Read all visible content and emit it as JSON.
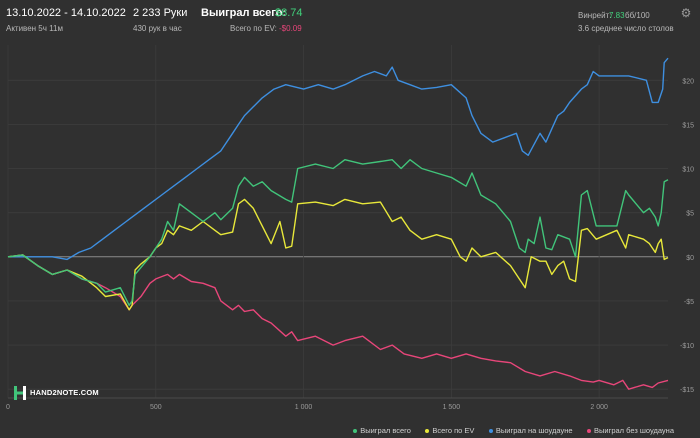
{
  "header": {
    "date_range": "13.10.2022 - 14.10.2022",
    "active": "Активен 5ч 11м",
    "hands": "2 233 Руки",
    "hands_per_hour": "430 рук в час",
    "won_label": "Выиграл всего:",
    "won_value": "$8.74",
    "ev_label": "Всего по EV:",
    "ev_value": "-$0.09",
    "winrate_label": "Винрейт:",
    "winrate_value": "7.83",
    "winrate_unit": "бб/100",
    "avg_tables": "3.6 среднее число столов"
  },
  "logo": {
    "text": "HAND2NOTE.COM"
  },
  "colors": {
    "background": "#303030",
    "grid": "#3c3c3c",
    "zero_line": "#8a8a8a",
    "won": "#41c47a",
    "ev": "#e8e83a",
    "showdown": "#3e8fe0",
    "non_showdown": "#e8467a"
  },
  "chart_data": {
    "type": "line",
    "title": "",
    "xlabel": "",
    "ylabel": "",
    "xlim": [
      0,
      2233
    ],
    "ylim": [
      -16,
      24
    ],
    "x_ticks": [
      0,
      500,
      1000,
      1500,
      2000
    ],
    "x_tick_labels": [
      "0",
      "500",
      "1 000",
      "1 500",
      "2 000"
    ],
    "y_ticks": [
      -15,
      -10,
      -5,
      0,
      5,
      10,
      15,
      20
    ],
    "y_tick_labels": [
      "-$15",
      "-$10",
      "-$5",
      "$0",
      "$5",
      "$10",
      "$15",
      "$20"
    ],
    "grid": true,
    "legend_position": "bottom-right",
    "series": [
      {
        "name": "Выиграл всего",
        "color": "#41c47a",
        "points": [
          [
            0,
            0
          ],
          [
            50,
            0.2
          ],
          [
            100,
            -1
          ],
          [
            150,
            -2
          ],
          [
            200,
            -1.5
          ],
          [
            250,
            -2.5
          ],
          [
            300,
            -3
          ],
          [
            330,
            -4
          ],
          [
            380,
            -3.5
          ],
          [
            410,
            -5.5
          ],
          [
            420,
            -5
          ],
          [
            430,
            -2
          ],
          [
            450,
            -1.2
          ],
          [
            480,
            0
          ],
          [
            500,
            1
          ],
          [
            520,
            2
          ],
          [
            530,
            3
          ],
          [
            540,
            4
          ],
          [
            560,
            3
          ],
          [
            580,
            6
          ],
          [
            620,
            5
          ],
          [
            660,
            4
          ],
          [
            700,
            5
          ],
          [
            720,
            4.2
          ],
          [
            760,
            5.5
          ],
          [
            780,
            8
          ],
          [
            800,
            9
          ],
          [
            830,
            8
          ],
          [
            860,
            8.5
          ],
          [
            890,
            7.5
          ],
          [
            940,
            6.5
          ],
          [
            960,
            6.2
          ],
          [
            980,
            10
          ],
          [
            1040,
            10.5
          ],
          [
            1100,
            10
          ],
          [
            1140,
            11
          ],
          [
            1200,
            10.5
          ],
          [
            1260,
            10.8
          ],
          [
            1300,
            11
          ],
          [
            1330,
            10
          ],
          [
            1360,
            11
          ],
          [
            1400,
            10
          ],
          [
            1450,
            9.5
          ],
          [
            1500,
            9
          ],
          [
            1550,
            8
          ],
          [
            1570,
            9.5
          ],
          [
            1600,
            7
          ],
          [
            1650,
            6
          ],
          [
            1700,
            4
          ],
          [
            1730,
            1
          ],
          [
            1750,
            0.5
          ],
          [
            1760,
            2
          ],
          [
            1780,
            1.5
          ],
          [
            1800,
            4.5
          ],
          [
            1820,
            1
          ],
          [
            1840,
            0.8
          ],
          [
            1860,
            2.5
          ],
          [
            1900,
            2
          ],
          [
            1920,
            0
          ],
          [
            1940,
            7
          ],
          [
            1960,
            7.5
          ],
          [
            1990,
            3.5
          ],
          [
            2060,
            3.5
          ],
          [
            2090,
            7.5
          ],
          [
            2100,
            7
          ],
          [
            2150,
            5
          ],
          [
            2170,
            5.5
          ],
          [
            2190,
            4.5
          ],
          [
            2200,
            3.5
          ],
          [
            2210,
            5
          ],
          [
            2220,
            8.5
          ],
          [
            2233,
            8.74
          ]
        ]
      },
      {
        "name": "Всего по EV",
        "color": "#e8e83a",
        "points": [
          [
            0,
            0
          ],
          [
            50,
            0.2
          ],
          [
            100,
            -1
          ],
          [
            150,
            -2
          ],
          [
            200,
            -1.5
          ],
          [
            250,
            -2.2
          ],
          [
            300,
            -3.5
          ],
          [
            330,
            -4.5
          ],
          [
            380,
            -4.2
          ],
          [
            410,
            -6
          ],
          [
            420,
            -5.5
          ],
          [
            430,
            -1.5
          ],
          [
            450,
            -0.8
          ],
          [
            480,
            0
          ],
          [
            500,
            1
          ],
          [
            520,
            1.5
          ],
          [
            540,
            3
          ],
          [
            560,
            2.5
          ],
          [
            580,
            3.5
          ],
          [
            620,
            3
          ],
          [
            660,
            4
          ],
          [
            700,
            3
          ],
          [
            720,
            2.5
          ],
          [
            760,
            2.8
          ],
          [
            780,
            6
          ],
          [
            800,
            6.5
          ],
          [
            830,
            5.5
          ],
          [
            860,
            3.5
          ],
          [
            890,
            1.5
          ],
          [
            920,
            4
          ],
          [
            940,
            1
          ],
          [
            960,
            1.2
          ],
          [
            980,
            6
          ],
          [
            1040,
            6.2
          ],
          [
            1100,
            5.8
          ],
          [
            1140,
            6.5
          ],
          [
            1200,
            6
          ],
          [
            1260,
            6.2
          ],
          [
            1300,
            4
          ],
          [
            1330,
            4.5
          ],
          [
            1360,
            3
          ],
          [
            1400,
            2
          ],
          [
            1450,
            2.5
          ],
          [
            1500,
            2
          ],
          [
            1530,
            0
          ],
          [
            1550,
            -0.5
          ],
          [
            1570,
            1
          ],
          [
            1600,
            0
          ],
          [
            1650,
            0.5
          ],
          [
            1700,
            -1
          ],
          [
            1730,
            -2.5
          ],
          [
            1750,
            -3.5
          ],
          [
            1770,
            0
          ],
          [
            1800,
            -0.5
          ],
          [
            1820,
            -0.5
          ],
          [
            1840,
            -2
          ],
          [
            1860,
            -1
          ],
          [
            1880,
            -0.5
          ],
          [
            1900,
            -2.5
          ],
          [
            1920,
            -2.8
          ],
          [
            1940,
            3
          ],
          [
            1960,
            3.2
          ],
          [
            1990,
            2
          ],
          [
            2060,
            3
          ],
          [
            2090,
            1
          ],
          [
            2100,
            2.5
          ],
          [
            2150,
            2
          ],
          [
            2170,
            1.5
          ],
          [
            2190,
            0.5
          ],
          [
            2200,
            1.5
          ],
          [
            2210,
            2
          ],
          [
            2220,
            -0.3
          ],
          [
            2233,
            -0.09
          ]
        ]
      },
      {
        "name": "Выиграл на шоудауне",
        "color": "#3e8fe0",
        "points": [
          [
            0,
            0
          ],
          [
            50,
            0
          ],
          [
            100,
            0
          ],
          [
            150,
            0
          ],
          [
            200,
            -0.3
          ],
          [
            240,
            0.5
          ],
          [
            280,
            1
          ],
          [
            300,
            1.5
          ],
          [
            320,
            2
          ],
          [
            360,
            3
          ],
          [
            400,
            4
          ],
          [
            440,
            5
          ],
          [
            480,
            6
          ],
          [
            520,
            7
          ],
          [
            560,
            8
          ],
          [
            600,
            9
          ],
          [
            640,
            10
          ],
          [
            680,
            11
          ],
          [
            720,
            12
          ],
          [
            760,
            14
          ],
          [
            780,
            15
          ],
          [
            800,
            16
          ],
          [
            830,
            17
          ],
          [
            860,
            18
          ],
          [
            900,
            19
          ],
          [
            940,
            19.5
          ],
          [
            1000,
            19
          ],
          [
            1050,
            19.5
          ],
          [
            1100,
            19
          ],
          [
            1140,
            19.5
          ],
          [
            1200,
            20.5
          ],
          [
            1240,
            21
          ],
          [
            1280,
            20.5
          ],
          [
            1300,
            21.5
          ],
          [
            1320,
            20
          ],
          [
            1360,
            19.5
          ],
          [
            1400,
            19
          ],
          [
            1450,
            19.2
          ],
          [
            1500,
            19.5
          ],
          [
            1550,
            18
          ],
          [
            1570,
            16
          ],
          [
            1600,
            14
          ],
          [
            1640,
            13
          ],
          [
            1680,
            13.5
          ],
          [
            1720,
            14
          ],
          [
            1740,
            12
          ],
          [
            1760,
            11.5
          ],
          [
            1800,
            14
          ],
          [
            1820,
            13
          ],
          [
            1840,
            14.5
          ],
          [
            1860,
            16
          ],
          [
            1880,
            16.5
          ],
          [
            1900,
            17.5
          ],
          [
            1940,
            19
          ],
          [
            1960,
            19.5
          ],
          [
            1980,
            21
          ],
          [
            2000,
            20.5
          ],
          [
            2050,
            20.5
          ],
          [
            2100,
            20.5
          ],
          [
            2160,
            20
          ],
          [
            2180,
            17.5
          ],
          [
            2200,
            17.5
          ],
          [
            2215,
            19
          ],
          [
            2220,
            22
          ],
          [
            2233,
            22.5
          ]
        ]
      },
      {
        "name": "Выиграл без шоудауна",
        "color": "#e8467a",
        "points": [
          [
            0,
            0
          ],
          [
            50,
            0.2
          ],
          [
            100,
            -1
          ],
          [
            150,
            -2
          ],
          [
            200,
            -1.5
          ],
          [
            250,
            -2.5
          ],
          [
            300,
            -3
          ],
          [
            330,
            -3.5
          ],
          [
            380,
            -4.5
          ],
          [
            410,
            -6
          ],
          [
            420,
            -5.5
          ],
          [
            450,
            -4.5
          ],
          [
            480,
            -3
          ],
          [
            500,
            -2.5
          ],
          [
            540,
            -2
          ],
          [
            560,
            -2.5
          ],
          [
            580,
            -2
          ],
          [
            620,
            -2.8
          ],
          [
            660,
            -3
          ],
          [
            700,
            -3.5
          ],
          [
            720,
            -5
          ],
          [
            760,
            -6
          ],
          [
            780,
            -5.5
          ],
          [
            800,
            -6.2
          ],
          [
            830,
            -6
          ],
          [
            860,
            -7
          ],
          [
            890,
            -7.5
          ],
          [
            940,
            -9
          ],
          [
            960,
            -8.5
          ],
          [
            980,
            -9.5
          ],
          [
            1040,
            -9
          ],
          [
            1100,
            -10
          ],
          [
            1140,
            -9.5
          ],
          [
            1200,
            -9
          ],
          [
            1260,
            -10.5
          ],
          [
            1300,
            -10
          ],
          [
            1340,
            -11
          ],
          [
            1400,
            -11.5
          ],
          [
            1450,
            -11
          ],
          [
            1500,
            -11.5
          ],
          [
            1550,
            -11
          ],
          [
            1600,
            -11.5
          ],
          [
            1650,
            -11.8
          ],
          [
            1700,
            -12
          ],
          [
            1750,
            -13
          ],
          [
            1800,
            -13.5
          ],
          [
            1850,
            -13
          ],
          [
            1900,
            -13.5
          ],
          [
            1940,
            -14
          ],
          [
            1980,
            -14.2
          ],
          [
            2000,
            -14
          ],
          [
            2050,
            -14.5
          ],
          [
            2080,
            -14
          ],
          [
            2100,
            -15
          ],
          [
            2150,
            -14.5
          ],
          [
            2180,
            -14.8
          ],
          [
            2200,
            -14.3
          ],
          [
            2233,
            -14
          ]
        ]
      }
    ]
  }
}
